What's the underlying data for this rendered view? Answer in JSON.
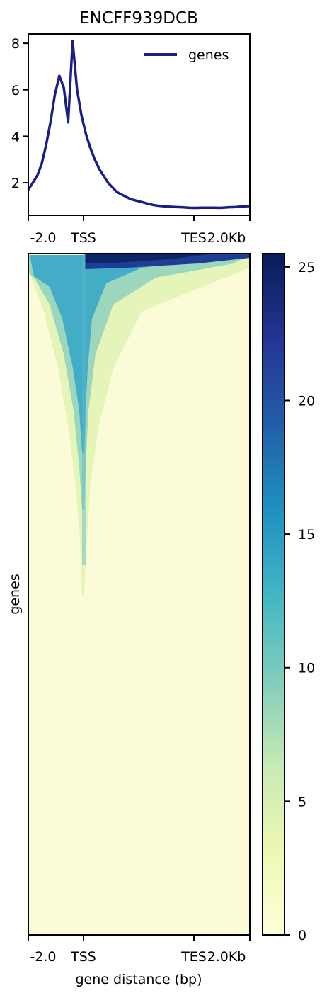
{
  "chart_data": [
    {
      "type": "line",
      "title": "ENCFF939DCB",
      "xlabel": "",
      "ylabel": "",
      "x_ticks": [
        "-2.0",
        "TSS",
        "TES",
        "2.0Kb"
      ],
      "y_ticks": [
        2,
        4,
        6,
        8
      ],
      "ylim": [
        0.6,
        8.4
      ],
      "legend": {
        "position": "top-right"
      },
      "series": [
        {
          "name": "genes",
          "color": "#1b1f84",
          "x": [
            0,
            2,
            4,
            6,
            8,
            10,
            12,
            14,
            16,
            18,
            20,
            22,
            24,
            26,
            28,
            30,
            32,
            34,
            36,
            38,
            40,
            42,
            44,
            46,
            48,
            50,
            52,
            54,
            56,
            58,
            60,
            62,
            64,
            66,
            68,
            70,
            72,
            74,
            76,
            78,
            80,
            82,
            84,
            86,
            88,
            90,
            92,
            94,
            96,
            98,
            100
          ],
          "values": [
            1.7,
            2.0,
            2.3,
            2.8,
            3.6,
            4.6,
            5.8,
            6.6,
            6.1,
            4.6,
            8.1,
            6.0,
            4.9,
            4.1,
            3.5,
            3.0,
            2.6,
            2.3,
            2.0,
            1.8,
            1.6,
            1.5,
            1.4,
            1.3,
            1.25,
            1.2,
            1.15,
            1.1,
            1.05,
            1.02,
            1.0,
            0.98,
            0.97,
            0.96,
            0.95,
            0.94,
            0.93,
            0.92,
            0.92,
            0.93,
            0.93,
            0.93,
            0.93,
            0.92,
            0.93,
            0.94,
            0.95,
            0.96,
            0.98,
            0.99,
            1.0
          ]
        }
      ]
    },
    {
      "type": "heatmap",
      "xlabel": "gene distance (bp)",
      "ylabel": "genes",
      "x_ticks": [
        "-2.0",
        "TSS",
        "TES",
        "2.0Kb"
      ],
      "colorbar": {
        "ticks": [
          0,
          5,
          10,
          15,
          20,
          25
        ],
        "range": [
          0,
          25.5
        ],
        "colormap": "YlGnBu",
        "colors": [
          "#ffffd9",
          "#edf8b1",
          "#c7e9b4",
          "#7fcdbb",
          "#41b6c4",
          "#1d91c0",
          "#225ea8",
          "#253494",
          "#081d58"
        ]
      }
    }
  ]
}
